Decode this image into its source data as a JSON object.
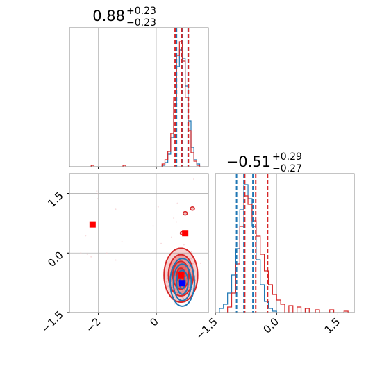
{
  "colors": {
    "blue": "#1f77b4",
    "red": "#d62728",
    "grid": "#b0b0b0",
    "marker_red": "#ff0000",
    "marker_blue": "#0000ff"
  },
  "chart_data": [
    {
      "type": "histogram",
      "panel": "top-left",
      "title": {
        "value": "0.88",
        "plus": "+0.23",
        "minus": "−0.23"
      },
      "xlim": [
        -3.0,
        1.8
      ],
      "grid": true,
      "series": [
        {
          "color": "blue",
          "bins": [
            {
              "x": 0.25,
              "y": 0.01
            },
            {
              "x": 0.35,
              "y": 0.03
            },
            {
              "x": 0.45,
              "y": 0.09
            },
            {
              "x": 0.55,
              "y": 0.21
            },
            {
              "x": 0.65,
              "y": 0.45
            },
            {
              "x": 0.75,
              "y": 0.72
            },
            {
              "x": 0.85,
              "y": 0.84
            },
            {
              "x": 0.95,
              "y": 0.78
            },
            {
              "x": 1.05,
              "y": 0.58
            },
            {
              "x": 1.15,
              "y": 0.33
            },
            {
              "x": 1.25,
              "y": 0.14
            },
            {
              "x": 1.35,
              "y": 0.05
            },
            {
              "x": 1.45,
              "y": 0.02
            }
          ]
        },
        {
          "color": "red",
          "bins": [
            {
              "x": -2.2,
              "y": 0.01
            },
            {
              "x": -1.1,
              "y": 0.01
            },
            {
              "x": 0.25,
              "y": 0.02
            },
            {
              "x": 0.35,
              "y": 0.05
            },
            {
              "x": 0.45,
              "y": 0.11
            },
            {
              "x": 0.55,
              "y": 0.24
            },
            {
              "x": 0.65,
              "y": 0.5
            },
            {
              "x": 0.75,
              "y": 0.8
            },
            {
              "x": 0.85,
              "y": 0.9
            },
            {
              "x": 0.95,
              "y": 0.76
            },
            {
              "x": 1.05,
              "y": 0.5
            },
            {
              "x": 1.15,
              "y": 0.26
            },
            {
              "x": 1.25,
              "y": 0.1
            },
            {
              "x": 1.35,
              "y": 0.04
            },
            {
              "x": 1.45,
              "y": 0.01
            }
          ]
        }
      ],
      "quantiles": {
        "red": [
          0.65,
          0.88,
          1.11
        ],
        "blue": [
          0.7,
          0.9,
          1.1
        ]
      }
    },
    {
      "type": "histogram",
      "panel": "bottom-right",
      "title": {
        "value": "−0.51",
        "plus": "+0.29",
        "minus": "−0.27"
      },
      "xlim": [
        -1.5,
        1.9
      ],
      "xticks": [
        {
          "v": -1.5,
          "label": "−1.5"
        },
        {
          "v": 0.0,
          "label": "0.0"
        },
        {
          "v": 1.5,
          "label": "1.5"
        }
      ],
      "grid": true,
      "series": [
        {
          "color": "blue",
          "bins": [
            {
              "x": -1.35,
              "y": 0.03
            },
            {
              "x": -1.25,
              "y": 0.06
            },
            {
              "x": -1.15,
              "y": 0.14
            },
            {
              "x": -1.05,
              "y": 0.27
            },
            {
              "x": -0.95,
              "y": 0.46
            },
            {
              "x": -0.85,
              "y": 0.74
            },
            {
              "x": -0.75,
              "y": 0.92
            },
            {
              "x": -0.65,
              "y": 0.82
            },
            {
              "x": -0.55,
              "y": 0.62
            },
            {
              "x": -0.45,
              "y": 0.38
            },
            {
              "x": -0.35,
              "y": 0.2
            },
            {
              "x": -0.25,
              "y": 0.08
            },
            {
              "x": -0.15,
              "y": 0.03
            },
            {
              "x": -0.05,
              "y": 0.01
            }
          ]
        },
        {
          "color": "red",
          "bins": [
            {
              "x": -1.15,
              "y": 0.04
            },
            {
              "x": -1.05,
              "y": 0.14
            },
            {
              "x": -0.95,
              "y": 0.35
            },
            {
              "x": -0.85,
              "y": 0.62
            },
            {
              "x": -0.75,
              "y": 0.84
            },
            {
              "x": -0.65,
              "y": 0.78
            },
            {
              "x": -0.55,
              "y": 0.66
            },
            {
              "x": -0.45,
              "y": 0.55
            },
            {
              "x": -0.35,
              "y": 0.42
            },
            {
              "x": -0.25,
              "y": 0.3
            },
            {
              "x": -0.15,
              "y": 0.2
            },
            {
              "x": -0.05,
              "y": 0.13
            },
            {
              "x": 0.05,
              "y": 0.09
            },
            {
              "x": 0.15,
              "y": 0.06
            },
            {
              "x": 0.35,
              "y": 0.05
            },
            {
              "x": 0.55,
              "y": 0.04
            },
            {
              "x": 0.75,
              "y": 0.03
            },
            {
              "x": 1.0,
              "y": 0.02
            },
            {
              "x": 1.35,
              "y": 0.02
            },
            {
              "x": 1.7,
              "y": 0.01
            }
          ]
        }
      ],
      "quantiles": {
        "red": [
          -0.78,
          -0.51,
          -0.22
        ],
        "blue": [
          -0.98,
          -0.8,
          -0.58
        ]
      }
    },
    {
      "type": "scatter",
      "panel": "bottom-left",
      "xlim": [
        -3.0,
        1.8
      ],
      "ylim": [
        -1.5,
        2.0
      ],
      "xticks": [
        {
          "v": -2,
          "label": "−2"
        },
        {
          "v": 0,
          "label": "0"
        }
      ],
      "yticks": [
        {
          "v": -1.5,
          "label": "−1.5"
        },
        {
          "v": 0.0,
          "label": "0.0"
        },
        {
          "v": 1.5,
          "label": "1.5"
        }
      ],
      "grid": true,
      "contours": [
        {
          "color": "red",
          "filled": true,
          "center": [
            0.85,
            -0.56
          ],
          "radii": [
            [
              0.58,
              0.68
            ],
            [
              0.43,
              0.52
            ],
            [
              0.28,
              0.35
            ],
            [
              0.14,
              0.18
            ]
          ]
        },
        {
          "color": "blue",
          "filled": false,
          "center": [
            0.9,
            -0.74
          ],
          "radii": [
            [
              0.42,
              0.6
            ],
            [
              0.31,
              0.46
            ],
            [
              0.2,
              0.3
            ],
            [
              0.1,
              0.15
            ]
          ]
        }
      ],
      "outlier_contours": [
        {
          "color": "red",
          "x": 1.0,
          "y": 1.0
        },
        {
          "color": "red",
          "x": 1.25,
          "y": 1.12
        },
        {
          "color": "red",
          "x": 0.9,
          "y": 0.5
        }
      ],
      "markers": [
        {
          "color": "marker_red",
          "x": -2.2,
          "y": 0.72
        },
        {
          "color": "marker_red",
          "x": 1.0,
          "y": 0.5
        },
        {
          "color": "marker_red",
          "x": 0.85,
          "y": -0.56
        },
        {
          "color": "marker_blue",
          "x": 0.9,
          "y": -0.76
        }
      ]
    }
  ]
}
